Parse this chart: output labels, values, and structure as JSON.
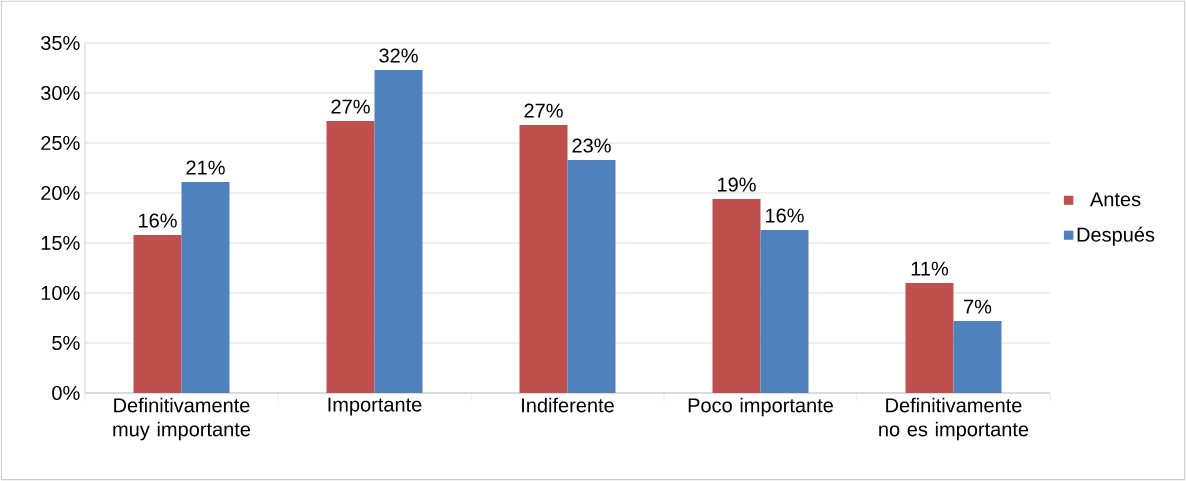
{
  "chart_data": {
    "type": "bar",
    "categories": [
      "Definitivamente muy importante",
      "Importante",
      "Indiferente",
      "Poco importante",
      "Definitivamente no es importante"
    ],
    "series": [
      {
        "name": "Antes",
        "color": "#c0504d",
        "values": [
          15.8,
          27.2,
          26.8,
          19.4,
          11.0
        ],
        "value_labels": [
          "16%",
          "27%",
          "27%",
          "19%",
          "11%"
        ]
      },
      {
        "name": "Después",
        "color": "#4f81bd",
        "values": [
          21.1,
          32.3,
          23.3,
          16.3,
          7.2
        ],
        "value_labels": [
          "21%",
          "32%",
          "23%",
          "16%",
          "7%"
        ]
      }
    ],
    "ylim": [
      0,
      35
    ],
    "yticks": [
      {
        "value": 0,
        "label": "0%"
      },
      {
        "value": 5,
        "label": "5%"
      },
      {
        "value": 10,
        "label": "10%"
      },
      {
        "value": 15,
        "label": "15%"
      },
      {
        "value": 20,
        "label": "20%"
      },
      {
        "value": 25,
        "label": "25%"
      },
      {
        "value": 30,
        "label": "30%"
      },
      {
        "value": 35,
        "label": "35%"
      }
    ],
    "grid": "y",
    "legend": "right"
  }
}
